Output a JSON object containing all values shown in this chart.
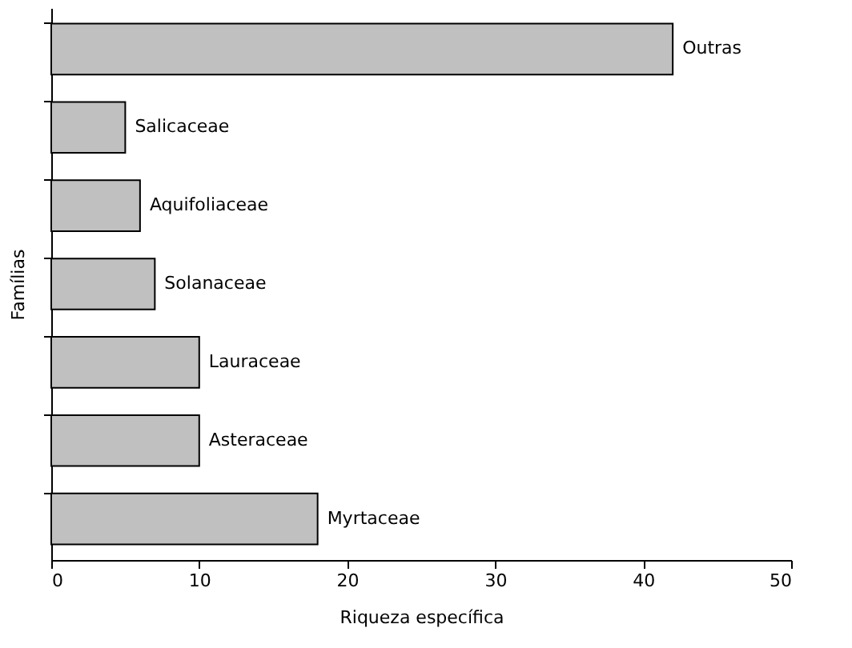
{
  "chart_data": {
    "type": "bar",
    "orientation": "horizontal",
    "xlabel": "Riqueza específica",
    "ylabel": "Famílias",
    "categories": [
      "Outras",
      "Salicaceae",
      "Aquifoliaceae",
      "Solanaceae",
      "Lauraceae",
      "Asteraceae",
      "Myrtaceae"
    ],
    "values": [
      42,
      5,
      6,
      7,
      10,
      10,
      18
    ],
    "color": "#c0c0c0",
    "xlim": [
      0,
      50
    ],
    "xticks": [
      0,
      10,
      20,
      30,
      40,
      50
    ],
    "grid": false,
    "tick_labels": "x"
  }
}
